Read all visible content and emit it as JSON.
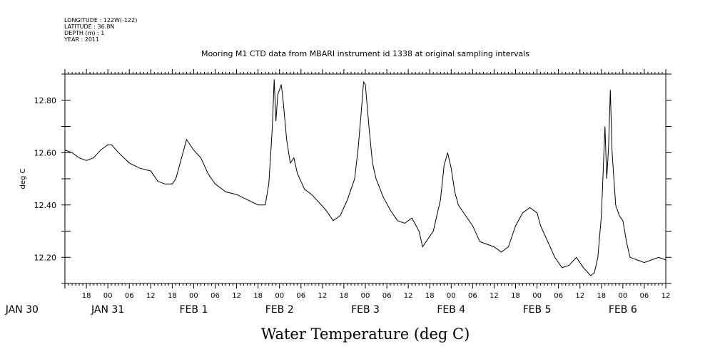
{
  "metadata": {
    "longitude": "LONGITUDE : 122W(-122)",
    "latitude": "LATITUDE : 36.8N",
    "depth": "DEPTH (m) : 1",
    "year": "YEAR : 2011"
  },
  "chart_data": {
    "type": "line",
    "title": "Mooring M1 CTD data from MBARI instrument id 1338 at original sampling intervals",
    "xlabel": "Water Temperature (deg C)",
    "ylabel": "deg C",
    "xlim": [
      "2011-01-30T12:00",
      "2011-02-06T12:00"
    ],
    "ylim": [
      12.1,
      12.9
    ],
    "y_ticks": [
      "12.20",
      "12.40",
      "12.60",
      "12.80"
    ],
    "hour_ticks": [
      "18",
      "00",
      "06",
      "12",
      "18",
      "00",
      "06",
      "12",
      "18",
      "00",
      "06",
      "12",
      "18",
      "00",
      "06",
      "12",
      "18",
      "00",
      "06",
      "12",
      "18",
      "00",
      "06",
      "12",
      "18",
      "00",
      "06",
      "12"
    ],
    "day_labels": [
      {
        "label": "JAN 30",
        "date": "2011-01-30T00:00"
      },
      {
        "label": "JAN 31",
        "date": "2011-01-31T00:00"
      },
      {
        "label": "FEB  1",
        "date": "2011-02-01T00:00"
      },
      {
        "label": "FEB  2",
        "date": "2011-02-02T00:00"
      },
      {
        "label": "FEB  3",
        "date": "2011-02-03T00:00"
      },
      {
        "label": "FEB  4",
        "date": "2011-02-04T00:00"
      },
      {
        "label": "FEB  5",
        "date": "2011-02-05T00:00"
      },
      {
        "label": "FEB  6",
        "date": "2011-02-06T00:00"
      }
    ],
    "series": [
      {
        "values": [
          [
            "2011-01-30T12:00",
            12.61
          ],
          [
            "2011-01-30T14:00",
            12.6
          ],
          [
            "2011-01-30T16:00",
            12.58
          ],
          [
            "2011-01-30T18:00",
            12.57
          ],
          [
            "2011-01-30T20:00",
            12.58
          ],
          [
            "2011-01-30T22:00",
            12.61
          ],
          [
            "2011-01-31T00:00",
            12.63
          ],
          [
            "2011-01-31T01:00",
            12.63
          ],
          [
            "2011-01-31T03:00",
            12.6
          ],
          [
            "2011-01-31T06:00",
            12.56
          ],
          [
            "2011-01-31T09:00",
            12.54
          ],
          [
            "2011-01-31T12:00",
            12.53
          ],
          [
            "2011-01-31T14:00",
            12.49
          ],
          [
            "2011-01-31T16:00",
            12.48
          ],
          [
            "2011-01-31T18:00",
            12.48
          ],
          [
            "2011-01-31T19:00",
            12.5
          ],
          [
            "2011-01-31T21:00",
            12.6
          ],
          [
            "2011-01-31T22:00",
            12.65
          ],
          [
            "2011-02-01T00:00",
            12.61
          ],
          [
            "2011-02-01T02:00",
            12.58
          ],
          [
            "2011-02-01T04:00",
            12.52
          ],
          [
            "2011-02-01T06:00",
            12.48
          ],
          [
            "2011-02-01T09:00",
            12.45
          ],
          [
            "2011-02-01T12:00",
            12.44
          ],
          [
            "2011-02-01T15:00",
            12.42
          ],
          [
            "2011-02-01T18:00",
            12.4
          ],
          [
            "2011-02-01T20:00",
            12.4
          ],
          [
            "2011-02-01T21:00",
            12.48
          ],
          [
            "2011-02-01T22:00",
            12.7
          ],
          [
            "2011-02-01T22:30",
            12.88
          ],
          [
            "2011-02-01T23:00",
            12.72
          ],
          [
            "2011-02-01T23:30",
            12.82
          ],
          [
            "2011-02-02T00:30",
            12.86
          ],
          [
            "2011-02-02T01:00",
            12.8
          ],
          [
            "2011-02-02T02:00",
            12.65
          ],
          [
            "2011-02-02T03:00",
            12.56
          ],
          [
            "2011-02-02T04:00",
            12.58
          ],
          [
            "2011-02-02T05:00",
            12.52
          ],
          [
            "2011-02-02T07:00",
            12.46
          ],
          [
            "2011-02-02T09:00",
            12.44
          ],
          [
            "2011-02-02T11:00",
            12.41
          ],
          [
            "2011-02-02T13:00",
            12.38
          ],
          [
            "2011-02-02T15:00",
            12.34
          ],
          [
            "2011-02-02T17:00",
            12.36
          ],
          [
            "2011-02-02T19:00",
            12.42
          ],
          [
            "2011-02-02T21:00",
            12.5
          ],
          [
            "2011-02-02T22:00",
            12.62
          ],
          [
            "2011-02-02T23:00",
            12.78
          ],
          [
            "2011-02-02T23:30",
            12.87
          ],
          [
            "2011-02-03T00:00",
            12.86
          ],
          [
            "2011-02-03T01:00",
            12.7
          ],
          [
            "2011-02-03T02:00",
            12.56
          ],
          [
            "2011-02-03T03:00",
            12.5
          ],
          [
            "2011-02-03T05:00",
            12.43
          ],
          [
            "2011-02-03T07:00",
            12.38
          ],
          [
            "2011-02-03T09:00",
            12.34
          ],
          [
            "2011-02-03T11:00",
            12.33
          ],
          [
            "2011-02-03T13:00",
            12.35
          ],
          [
            "2011-02-03T15:00",
            12.3
          ],
          [
            "2011-02-03T16:00",
            12.24
          ],
          [
            "2011-02-03T17:00",
            12.26
          ],
          [
            "2011-02-03T19:00",
            12.3
          ],
          [
            "2011-02-03T21:00",
            12.42
          ],
          [
            "2011-02-03T22:00",
            12.55
          ],
          [
            "2011-02-03T23:00",
            12.6
          ],
          [
            "2011-02-04T00:00",
            12.54
          ],
          [
            "2011-02-04T01:00",
            12.45
          ],
          [
            "2011-02-04T02:00",
            12.4
          ],
          [
            "2011-02-04T04:00",
            12.36
          ],
          [
            "2011-02-04T06:00",
            12.32
          ],
          [
            "2011-02-04T08:00",
            12.26
          ],
          [
            "2011-02-04T10:00",
            12.25
          ],
          [
            "2011-02-04T12:00",
            12.24
          ],
          [
            "2011-02-04T14:00",
            12.22
          ],
          [
            "2011-02-04T16:00",
            12.24
          ],
          [
            "2011-02-04T18:00",
            12.32
          ],
          [
            "2011-02-04T20:00",
            12.37
          ],
          [
            "2011-02-04T22:00",
            12.39
          ],
          [
            "2011-02-05T00:00",
            12.37
          ],
          [
            "2011-02-05T01:00",
            12.32
          ],
          [
            "2011-02-05T03:00",
            12.26
          ],
          [
            "2011-02-05T05:00",
            12.2
          ],
          [
            "2011-02-05T07:00",
            12.16
          ],
          [
            "2011-02-05T09:00",
            12.17
          ],
          [
            "2011-02-05T11:00",
            12.2
          ],
          [
            "2011-02-05T13:00",
            12.16
          ],
          [
            "2011-02-05T15:00",
            12.13
          ],
          [
            "2011-02-05T16:00",
            12.14
          ],
          [
            "2011-02-05T17:00",
            12.2
          ],
          [
            "2011-02-05T18:00",
            12.36
          ],
          [
            "2011-02-05T19:00",
            12.7
          ],
          [
            "2011-02-05T19:30",
            12.5
          ],
          [
            "2011-02-05T20:00",
            12.62
          ],
          [
            "2011-02-05T20:30",
            12.84
          ],
          [
            "2011-02-05T21:00",
            12.6
          ],
          [
            "2011-02-05T22:00",
            12.4
          ],
          [
            "2011-02-05T23:00",
            12.36
          ],
          [
            "2011-02-06T00:00",
            12.34
          ],
          [
            "2011-02-06T01:00",
            12.26
          ],
          [
            "2011-02-06T02:00",
            12.2
          ],
          [
            "2011-02-06T04:00",
            12.19
          ],
          [
            "2011-02-06T06:00",
            12.18
          ],
          [
            "2011-02-06T08:00",
            12.19
          ],
          [
            "2011-02-06T10:00",
            12.2
          ],
          [
            "2011-02-06T12:00",
            12.19
          ]
        ]
      }
    ]
  }
}
